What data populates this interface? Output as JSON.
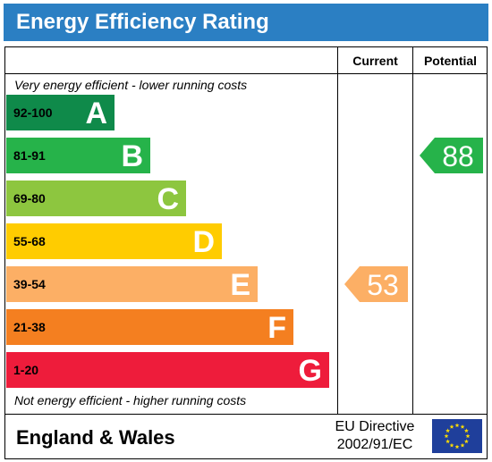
{
  "title": "Energy Efficiency Rating",
  "columns": {
    "current": "Current",
    "potential": "Potential"
  },
  "top_caption": "Very energy efficient - lower running costs",
  "bottom_caption": "Not energy efficient - higher running costs",
  "footer": {
    "region": "England & Wales",
    "directive_line1": "EU Directive",
    "directive_line2": "2002/91/EC"
  },
  "chart_data": {
    "type": "bar",
    "categories": [
      "A",
      "B",
      "C",
      "D",
      "E",
      "F",
      "G"
    ],
    "bands": [
      {
        "letter": "A",
        "range": "92-100",
        "color": "#0f8a4a"
      },
      {
        "letter": "B",
        "range": "81-91",
        "color": "#26b34a"
      },
      {
        "letter": "C",
        "range": "69-80",
        "color": "#8dc63f"
      },
      {
        "letter": "D",
        "range": "55-68",
        "color": "#ffcc00"
      },
      {
        "letter": "E",
        "range": "39-54",
        "color": "#fcaf65"
      },
      {
        "letter": "F",
        "range": "21-38",
        "color": "#f47f20"
      },
      {
        "letter": "G",
        "range": "1-20",
        "color": "#ee1c3b"
      }
    ],
    "current": {
      "value": 53,
      "band": "E",
      "color": "#fcaf65"
    },
    "potential": {
      "value": 88,
      "band": "B",
      "color": "#26b34a"
    }
  },
  "colors": {
    "title_bar": "#2b7fc3",
    "eu_flag_blue": "#1f3f9b",
    "eu_flag_stars": "#ffdd00"
  }
}
